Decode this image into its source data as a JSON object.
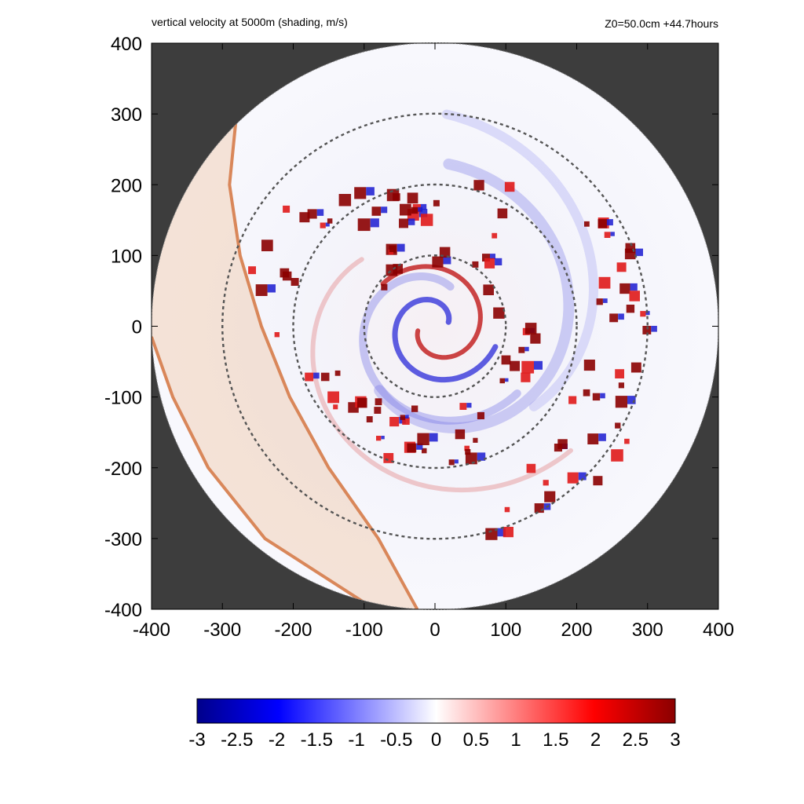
{
  "header": {
    "title": "vertical velocity at 5000m (shading, m/s)",
    "info": "Z0=50.0cm  +44.7hours"
  },
  "colors": {
    "background_mask": "#3d3d3d",
    "ring": "#555555",
    "band_fill": "#f0c8a8",
    "band_edge": "#d9875a",
    "negative_max": "#00008b",
    "negative": "#0000ff",
    "neutral": "#ffffff",
    "positive": "#ff0000",
    "positive_max": "#8b0000"
  },
  "chart_data": {
    "type": "heatmap",
    "title": "vertical velocity at 5000m (shading, m/s)",
    "subtitle": "Z0=50.0cm  +44.7hours",
    "xlabel": "",
    "ylabel": "",
    "xlim": [
      -400,
      400
    ],
    "ylim": [
      -400,
      400
    ],
    "x_ticks": [
      -400,
      -300,
      -200,
      -100,
      0,
      100,
      200,
      300,
      400
    ],
    "y_ticks": [
      400,
      300,
      200,
      100,
      0,
      -100,
      -200,
      -300,
      -400
    ],
    "domain_radius": 400,
    "reference_circles_radius": [
      100,
      200,
      300
    ],
    "shaded_band": {
      "outer_edge": [
        [
          -280,
          300
        ],
        [
          -290,
          200
        ],
        [
          -275,
          100
        ],
        [
          -245,
          0
        ],
        [
          -205,
          -100
        ],
        [
          -150,
          -200
        ],
        [
          -80,
          -300
        ],
        [
          -25,
          -400
        ]
      ],
      "inner_edge": [
        [
          -400,
          -15
        ],
        [
          -370,
          -100
        ],
        [
          -320,
          -200
        ],
        [
          -240,
          -300
        ],
        [
          -85,
          -400
        ]
      ]
    },
    "colorbar": {
      "min": -3,
      "max": 3,
      "tick_labels": [
        "-3",
        "-2.5",
        "-2",
        "-1.5",
        "-1",
        "-0.5",
        "0",
        "0.5",
        "1",
        "1.5",
        "2",
        "2.5",
        "3"
      ],
      "tick_values": [
        -3,
        -2.5,
        -2,
        -1.5,
        -1,
        -0.5,
        0,
        0.5,
        1,
        1.5,
        2,
        2.5,
        3
      ]
    }
  }
}
